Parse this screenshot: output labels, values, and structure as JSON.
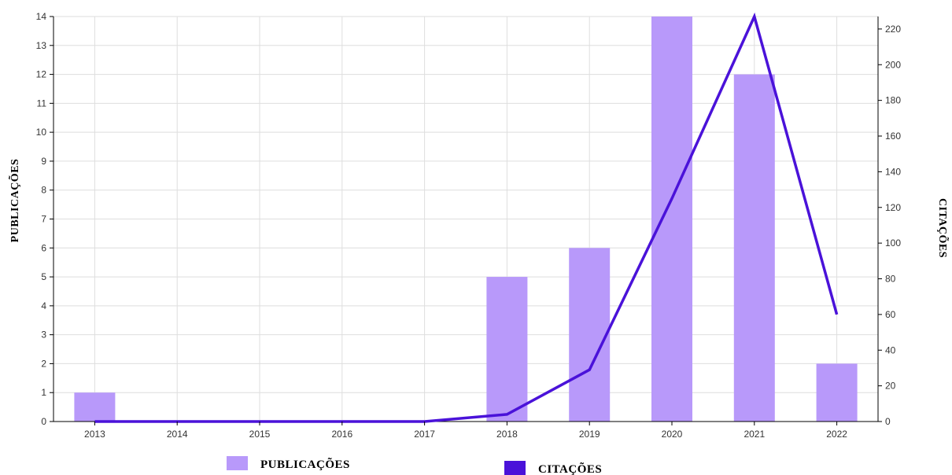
{
  "chart_data": {
    "type": "bar",
    "categories": [
      "2013",
      "2014",
      "2015",
      "2016",
      "2017",
      "2018",
      "2019",
      "2020",
      "2021",
      "2022"
    ],
    "series": [
      {
        "name": "PUBLICAÇÕES",
        "type": "bar",
        "axis": "left",
        "color": "#b899fa",
        "values": [
          1,
          0,
          0,
          0,
          0,
          5,
          6,
          14,
          12,
          2
        ]
      },
      {
        "name": "CITAÇÕES",
        "type": "line",
        "axis": "right",
        "color": "#4a12d9",
        "values": [
          0,
          0,
          0,
          0,
          0,
          4,
          29,
          125,
          227,
          60
        ]
      }
    ],
    "ylabel": "PUBLICAÇÕES",
    "y2label": "CITAÇÕES",
    "ylim": [
      0,
      14
    ],
    "y2lim": [
      0,
      227
    ],
    "yticks": [
      0,
      1,
      2,
      3,
      4,
      5,
      6,
      7,
      8,
      9,
      10,
      11,
      12,
      13,
      14
    ],
    "y2ticks": [
      0,
      20,
      40,
      60,
      80,
      100,
      120,
      140,
      160,
      180,
      200,
      220
    ],
    "grid": true,
    "legend": "bottom-center",
    "legend_entries": [
      {
        "label": "PUBLICAÇÕES",
        "color": "#b899fa"
      },
      {
        "label": "CITAÇÕES",
        "color": "#4a12d9"
      }
    ]
  }
}
